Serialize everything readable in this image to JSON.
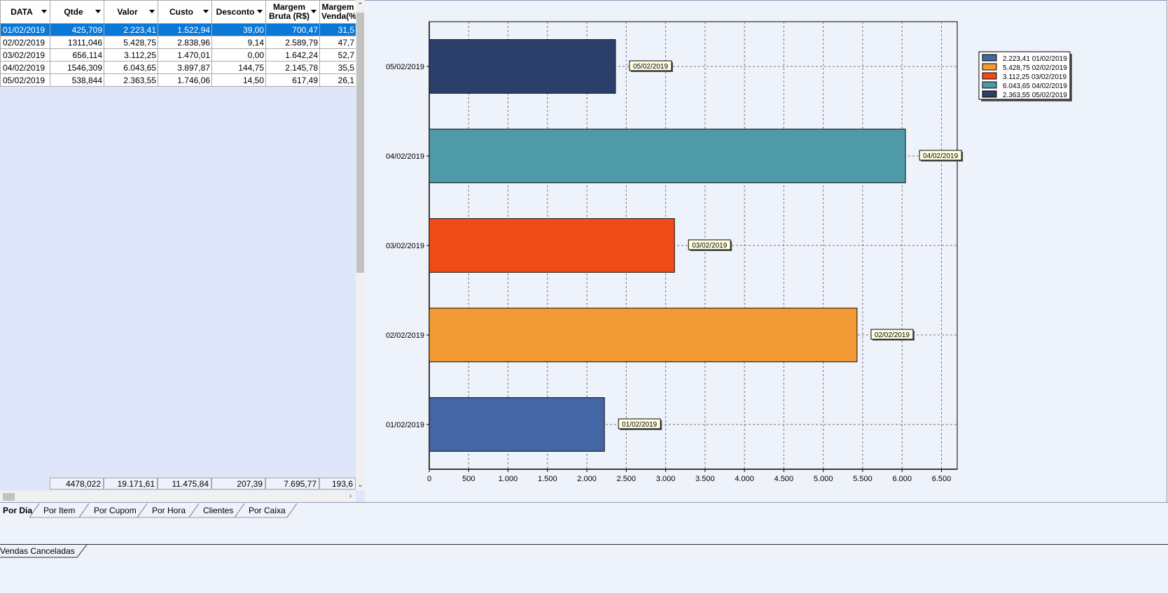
{
  "grid": {
    "columns": [
      {
        "label": "DATA",
        "sortable": true
      },
      {
        "label": "Qtde",
        "sortable": true
      },
      {
        "label": "Valor",
        "sortable": true
      },
      {
        "label": "Custo",
        "sortable": true
      },
      {
        "label": "Desconto",
        "sortable": true
      },
      {
        "label": "Margem Bruta (R$)",
        "sortable": true
      },
      {
        "label": "Margem Venda(%",
        "sortable": false
      }
    ],
    "rows": [
      [
        "01/02/2019",
        "425,709",
        "2.223,41",
        "1.522,94",
        "39,00",
        "700,47",
        "31,5"
      ],
      [
        "02/02/2019",
        "1311,046",
        "5.428,75",
        "2.838,96",
        "9,14",
        "2.589,79",
        "47,7"
      ],
      [
        "03/02/2019",
        "656,114",
        "3.112,25",
        "1.470,01",
        "0,00",
        "1.642,24",
        "52,7"
      ],
      [
        "04/02/2019",
        "1546,309",
        "6.043,65",
        "3.897,87",
        "144,75",
        "2.145,78",
        "35,5"
      ],
      [
        "05/02/2019",
        "538,844",
        "2.363,55",
        "1.746,06",
        "14,50",
        "617,49",
        "26,1"
      ]
    ],
    "selected_row": 0,
    "totals": [
      "",
      "4478,022",
      "19.171,61",
      "11.475,84",
      "207,39",
      "7.695,77",
      "193,6"
    ]
  },
  "chart_data": {
    "type": "bar",
    "orientation": "horizontal",
    "categories": [
      "01/02/2019",
      "02/02/2019",
      "03/02/2019",
      "04/02/2019",
      "05/02/2019"
    ],
    "values": [
      2223.41,
      5428.75,
      3112.25,
      6043.65,
      2363.55
    ],
    "bar_labels": [
      "01/02/2019",
      "02/02/2019",
      "03/02/2019",
      "04/02/2019",
      "05/02/2019"
    ],
    "colors": [
      "#4466a4",
      "#f29b35",
      "#f04c17",
      "#4f9aa9",
      "#2c3f6b"
    ],
    "xlim": [
      0,
      6700
    ],
    "x_ticks": [
      0,
      500,
      1000,
      1500,
      2000,
      2500,
      3000,
      3500,
      4000,
      4500,
      5000,
      5500,
      6000,
      6500
    ],
    "x_tick_labels": [
      "0",
      "500",
      "1.000",
      "1.500",
      "2.000",
      "2.500",
      "3.000",
      "3.500",
      "4.000",
      "4.500",
      "5.000",
      "5.500",
      "6.000",
      "6.500"
    ],
    "grid": true,
    "legend_position": "top-right",
    "legend": [
      "2.223,41 01/02/2019",
      "5.428,75 02/02/2019",
      "3.112,25 03/02/2019",
      "6.043,65 04/02/2019",
      "2.363,55 05/02/2019"
    ]
  },
  "tabs": [
    {
      "label": "Por Dia",
      "active": true
    },
    {
      "label": "Por Item",
      "active": false
    },
    {
      "label": "Por Cupom",
      "active": false
    },
    {
      "label": "Por Hora",
      "active": false
    },
    {
      "label": "Clientes",
      "active": false
    },
    {
      "label": "Por Caixa",
      "active": false
    }
  ],
  "bottom_tab": {
    "label": "Vendas Canceladas"
  },
  "icons": {
    "scroll_up": "chevron-up-icon",
    "scroll_down": "chevron-down-icon",
    "scroll_right": "chevron-right-icon",
    "sort": "sort-down-icon"
  }
}
